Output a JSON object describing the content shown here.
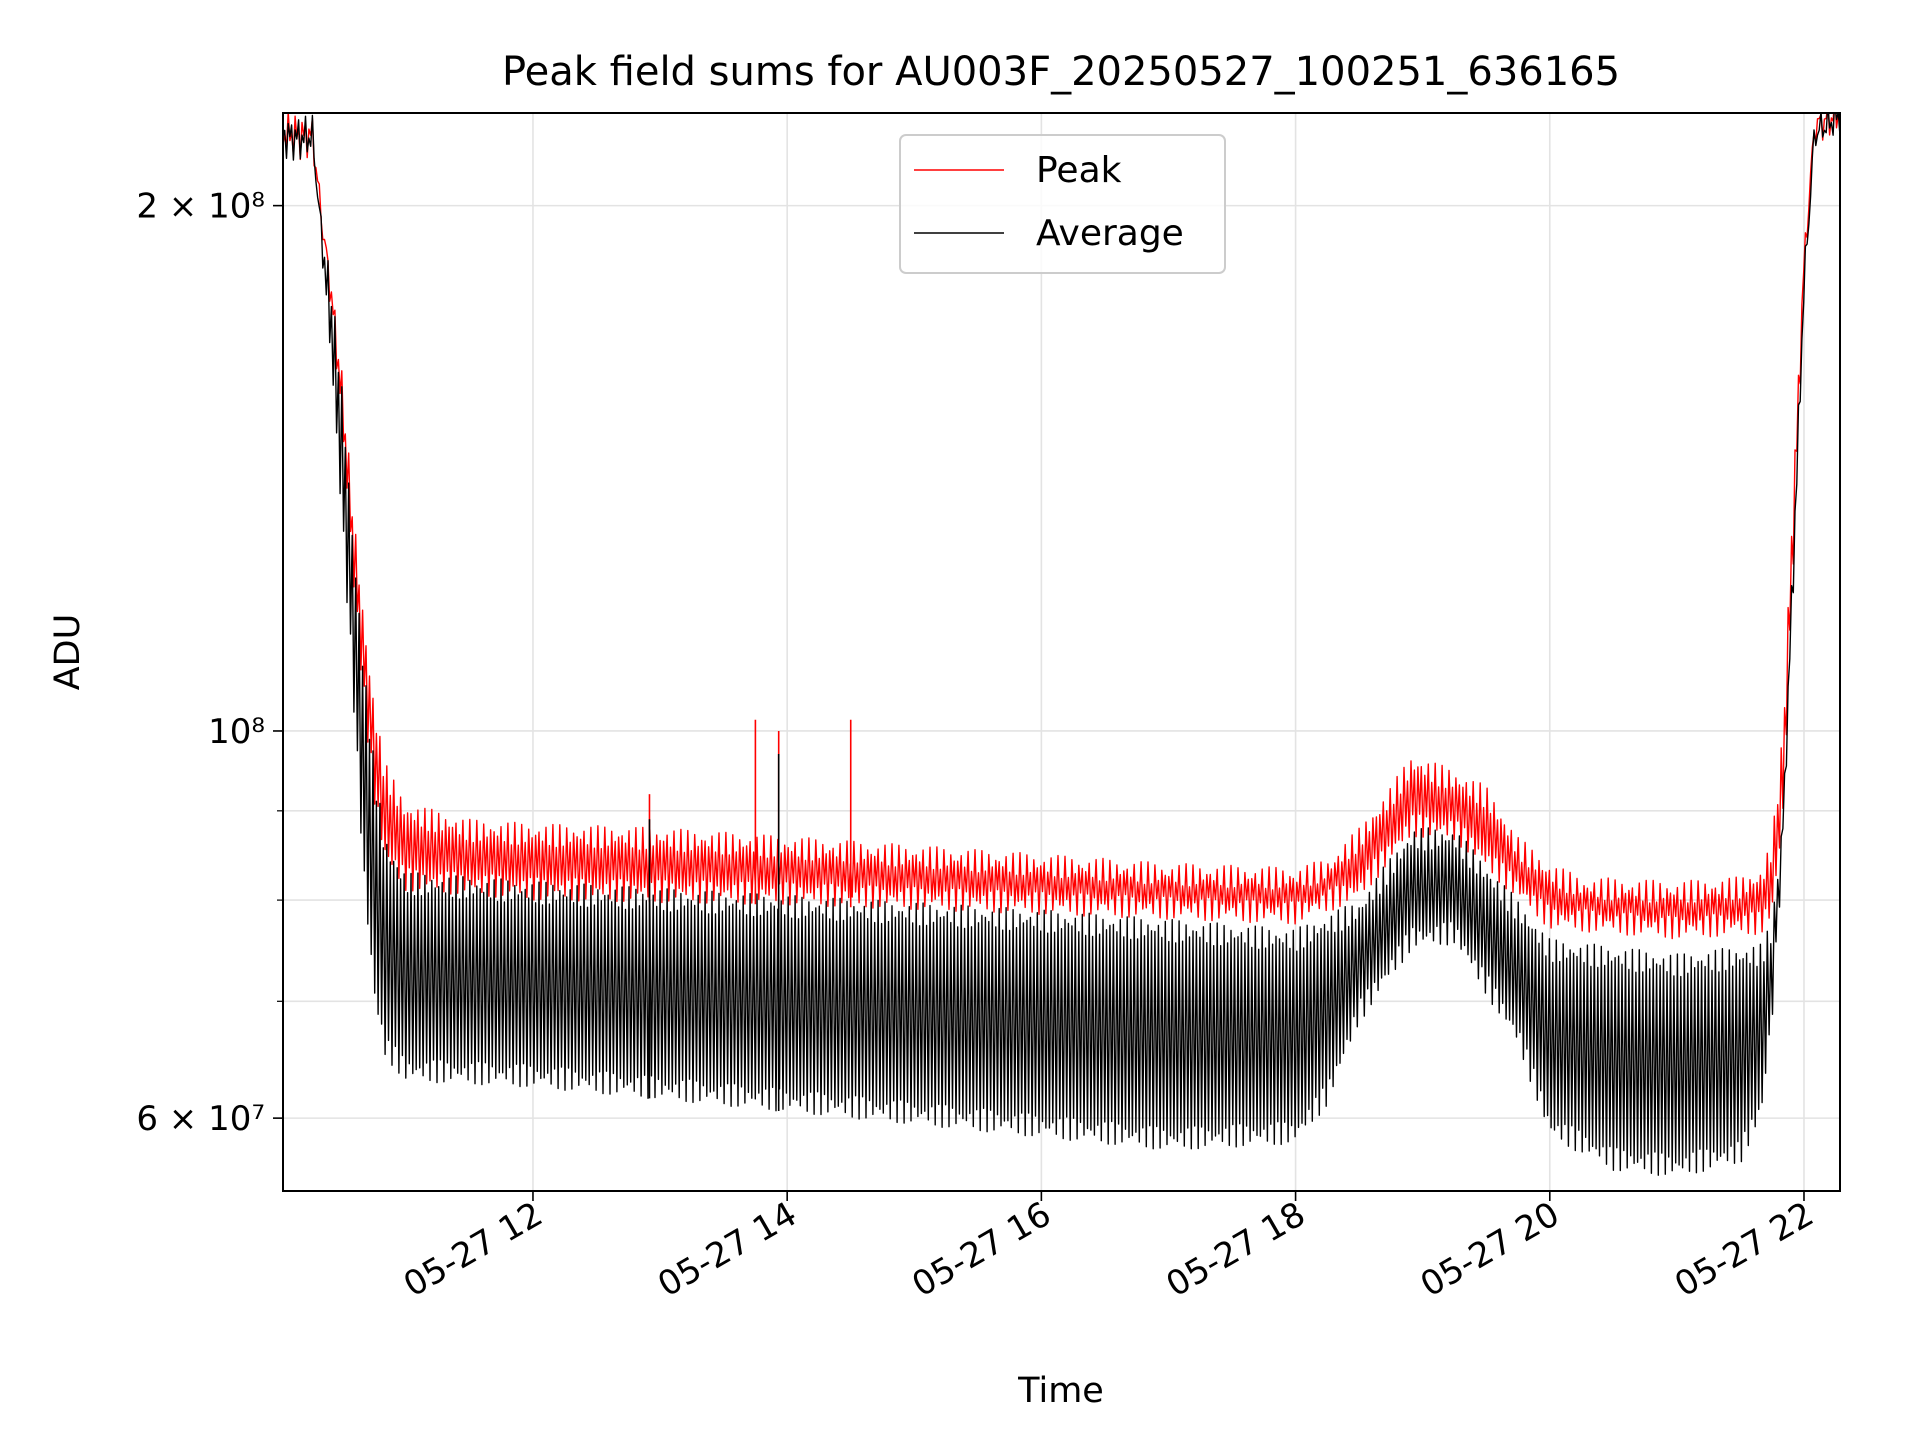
{
  "chart_data": {
    "type": "line",
    "title": "Peak field sums for AU003F_20250527_100251_636165",
    "xlabel": "Time",
    "ylabel": "ADU",
    "y_scale": "log",
    "ylim": [
      54500000,
      226000000
    ],
    "xlim": [
      "2025-05-27 10:02",
      "2025-05-27 22:17"
    ],
    "grid": true,
    "legend_position": "upper center",
    "x_ticks": [
      {
        "value": "2025-05-27 12:00",
        "label": "05-27 12"
      },
      {
        "value": "2025-05-27 14:00",
        "label": "05-27 14"
      },
      {
        "value": "2025-05-27 16:00",
        "label": "05-27 16"
      },
      {
        "value": "2025-05-27 18:00",
        "label": "05-27 18"
      },
      {
        "value": "2025-05-27 20:00",
        "label": "05-27 20"
      },
      {
        "value": "2025-05-27 22:00",
        "label": "05-27 22"
      }
    ],
    "y_ticks_major": [
      {
        "value": 60000000,
        "label": "6 × 10⁷"
      },
      {
        "value": 100000000,
        "label": "10⁸"
      },
      {
        "value": 200000000,
        "label": "2 × 10⁸"
      }
    ],
    "y_ticks_minor": [
      70000000,
      80000000,
      90000000
    ],
    "series": [
      {
        "name": "Peak",
        "color": "#ff0000",
        "envelope_unit": "ADU",
        "upper_envelope": [
          [
            "2025-05-27 10:02",
            220000000
          ],
          [
            "2025-05-27 10:10",
            219000000
          ],
          [
            "2025-05-27 10:16",
            220000000
          ],
          [
            "2025-05-27 10:20",
            200000000
          ],
          [
            "2025-05-27 10:25",
            182000000
          ],
          [
            "2025-05-27 10:30",
            160000000
          ],
          [
            "2025-05-27 10:35",
            135000000
          ],
          [
            "2025-05-27 10:40",
            117000000
          ],
          [
            "2025-05-27 10:45",
            104000000
          ],
          [
            "2025-05-27 10:50",
            96000000
          ],
          [
            "2025-05-27 11:00",
            91000000
          ],
          [
            "2025-05-27 11:30",
            89000000
          ],
          [
            "2025-05-27 12:00",
            88500000
          ],
          [
            "2025-05-27 13:00",
            88000000
          ],
          [
            "2025-05-27 14:00",
            87000000
          ],
          [
            "2025-05-27 15:00",
            86000000
          ],
          [
            "2025-05-27 16:00",
            85000000
          ],
          [
            "2025-05-27 17:00",
            84000000
          ],
          [
            "2025-05-27 18:00",
            83500000
          ],
          [
            "2025-05-27 18:15",
            84500000
          ],
          [
            "2025-05-27 18:30",
            88000000
          ],
          [
            "2025-05-27 18:45",
            93000000
          ],
          [
            "2025-05-27 18:55",
            97000000
          ],
          [
            "2025-05-27 19:15",
            95000000
          ],
          [
            "2025-05-27 19:30",
            93000000
          ],
          [
            "2025-05-27 19:45",
            87000000
          ],
          [
            "2025-05-27 20:00",
            84000000
          ],
          [
            "2025-05-27 20:15",
            82500000
          ],
          [
            "2025-05-27 21:00",
            82000000
          ],
          [
            "2025-05-27 21:30",
            82500000
          ],
          [
            "2025-05-27 21:40",
            83500000
          ],
          [
            "2025-05-27 21:45",
            87000000
          ],
          [
            "2025-05-27 21:50",
            100000000
          ],
          [
            "2025-05-27 21:55",
            140000000
          ],
          [
            "2025-05-27 22:00",
            190000000
          ],
          [
            "2025-05-27 22:05",
            224000000
          ],
          [
            "2025-05-27 22:17",
            226000000
          ]
        ],
        "lower_envelope": [
          [
            "2025-05-27 10:02",
            220000000
          ],
          [
            "2025-05-27 10:16",
            219000000
          ],
          [
            "2025-05-27 10:20",
            195000000
          ],
          [
            "2025-05-27 10:25",
            172000000
          ],
          [
            "2025-05-27 10:30",
            148000000
          ],
          [
            "2025-05-27 10:35",
            122000000
          ],
          [
            "2025-05-27 10:40",
            104000000
          ],
          [
            "2025-05-27 10:45",
            91000000
          ],
          [
            "2025-05-27 10:50",
            84000000
          ],
          [
            "2025-05-27 11:00",
            81000000
          ],
          [
            "2025-05-27 11:30",
            80500000
          ],
          [
            "2025-05-27 12:00",
            80000000
          ],
          [
            "2025-05-27 14:00",
            79500000
          ],
          [
            "2025-05-27 16:00",
            78500000
          ],
          [
            "2025-05-27 18:00",
            77500000
          ],
          [
            "2025-05-27 18:30",
            80000000
          ],
          [
            "2025-05-27 18:55",
            87000000
          ],
          [
            "2025-05-27 19:15",
            86500000
          ],
          [
            "2025-05-27 19:45",
            80000000
          ],
          [
            "2025-05-27 20:00",
            77000000
          ],
          [
            "2025-05-27 21:00",
            76000000
          ],
          [
            "2025-05-27 21:40",
            76500000
          ],
          [
            "2025-05-27 21:45",
            78000000
          ],
          [
            "2025-05-27 21:50",
            88000000
          ],
          [
            "2025-05-27 21:55",
            125000000
          ],
          [
            "2025-05-27 22:00",
            180000000
          ],
          [
            "2025-05-27 22:05",
            220000000
          ],
          [
            "2025-05-27 22:17",
            226000000
          ]
        ],
        "spikes": [
          [
            "2025-05-27 12:55",
            92000000
          ],
          [
            "2025-05-27 13:45",
            101500000
          ],
          [
            "2025-05-27 13:56",
            100000000
          ],
          [
            "2025-05-27 14:30",
            101500000
          ]
        ]
      },
      {
        "name": "Average",
        "color": "#000000",
        "envelope_unit": "ADU",
        "upper_envelope": [
          [
            "2025-05-27 10:02",
            219500000
          ],
          [
            "2025-05-27 10:10",
            218500000
          ],
          [
            "2025-05-27 10:16",
            219500000
          ],
          [
            "2025-05-27 10:20",
            198000000
          ],
          [
            "2025-05-27 10:25",
            180000000
          ],
          [
            "2025-05-27 10:30",
            157000000
          ],
          [
            "2025-05-27 10:35",
            130000000
          ],
          [
            "2025-05-27 10:40",
            110000000
          ],
          [
            "2025-05-27 10:45",
            96000000
          ],
          [
            "2025-05-27 10:50",
            87000000
          ],
          [
            "2025-05-27 11:00",
            83000000
          ],
          [
            "2025-05-27 12:00",
            82000000
          ],
          [
            "2025-05-27 14:00",
            80500000
          ],
          [
            "2025-05-27 16:00",
            79000000
          ],
          [
            "2025-05-27 18:00",
            77000000
          ],
          [
            "2025-05-27 18:30",
            80000000
          ],
          [
            "2025-05-27 18:55",
            88000000
          ],
          [
            "2025-05-27 19:15",
            88000000
          ],
          [
            "2025-05-27 19:45",
            80000000
          ],
          [
            "2025-05-27 20:00",
            76000000
          ],
          [
            "2025-05-27 21:00",
            74500000
          ],
          [
            "2025-05-27 21:40",
            75500000
          ],
          [
            "2025-05-27 21:45",
            78000000
          ],
          [
            "2025-05-27 21:50",
            90000000
          ],
          [
            "2025-05-27 21:55",
            130000000
          ],
          [
            "2025-05-27 22:00",
            185000000
          ],
          [
            "2025-05-27 22:05",
            222000000
          ],
          [
            "2025-05-27 22:17",
            225500000
          ]
        ],
        "lower_envelope": [
          [
            "2025-05-27 10:02",
            219000000
          ],
          [
            "2025-05-27 10:16",
            218500000
          ],
          [
            "2025-05-27 10:20",
            188000000
          ],
          [
            "2025-05-27 10:25",
            160000000
          ],
          [
            "2025-05-27 10:30",
            130000000
          ],
          [
            "2025-05-27 10:35",
            105000000
          ],
          [
            "2025-05-27 10:40",
            82000000
          ],
          [
            "2025-05-27 10:45",
            70000000
          ],
          [
            "2025-05-27 10:50",
            65000000
          ],
          [
            "2025-05-27 11:00",
            63000000
          ],
          [
            "2025-05-27 12:00",
            62500000
          ],
          [
            "2025-05-27 13:00",
            61500000
          ],
          [
            "2025-05-27 14:00",
            60500000
          ],
          [
            "2025-05-27 15:00",
            59500000
          ],
          [
            "2025-05-27 16:00",
            58500000
          ],
          [
            "2025-05-27 17:00",
            57500000
          ],
          [
            "2025-05-27 18:00",
            58000000
          ],
          [
            "2025-05-27 18:15",
            61000000
          ],
          [
            "2025-05-27 18:30",
            68000000
          ],
          [
            "2025-05-27 18:55",
            75000000
          ],
          [
            "2025-05-27 19:15",
            75500000
          ],
          [
            "2025-05-27 19:45",
            66000000
          ],
          [
            "2025-05-27 20:00",
            58500000
          ],
          [
            "2025-05-27 20:30",
            56000000
          ],
          [
            "2025-05-27 21:00",
            55500000
          ],
          [
            "2025-05-27 21:30",
            56500000
          ],
          [
            "2025-05-27 21:40",
            60000000
          ],
          [
            "2025-05-27 21:45",
            68000000
          ],
          [
            "2025-05-27 21:50",
            85000000
          ],
          [
            "2025-05-27 21:55",
            120000000
          ],
          [
            "2025-05-27 22:00",
            175000000
          ],
          [
            "2025-05-27 22:05",
            218000000
          ],
          [
            "2025-05-27 22:17",
            225500000
          ]
        ],
        "spikes": [
          [
            "2025-05-27 12:55",
            89000000
          ],
          [
            "2025-05-27 13:56",
            97000000
          ]
        ]
      }
    ]
  }
}
